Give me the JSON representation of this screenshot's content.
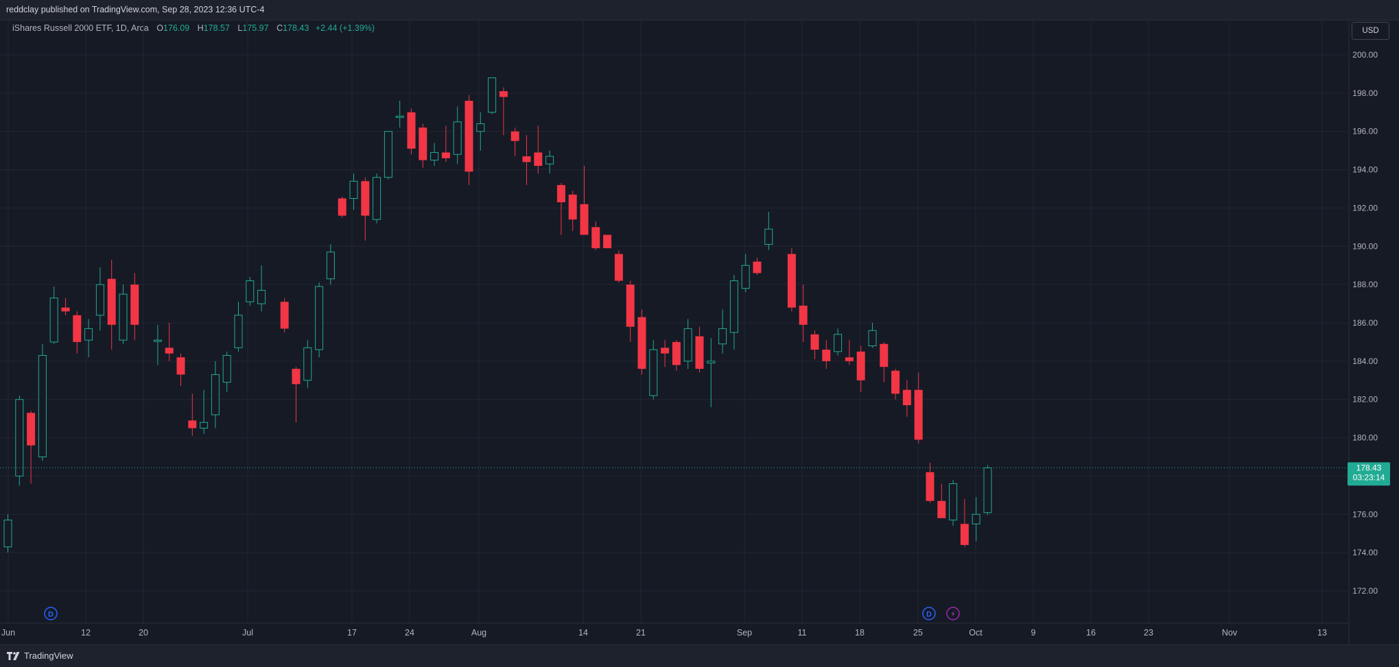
{
  "header": {
    "published": "reddclay published on TradingView.com, Sep 28, 2023 12:36 UTC-4"
  },
  "legend": {
    "symbol": "iShares Russell 2000 ETF, 1D, Arca",
    "o_label": "O",
    "o": "176.09",
    "h_label": "H",
    "h": "178.57",
    "l_label": "L",
    "l": "175.97",
    "c_label": "C",
    "c": "178.43",
    "change": "+2.44 (+1.39%)"
  },
  "currency_button": "USD",
  "last_price": {
    "value": "178.43",
    "countdown": "03:23:14"
  },
  "markers": {
    "dividend": "D",
    "earnings": "⚡"
  },
  "footer": {
    "brand": "TradingView"
  },
  "colors": {
    "up": "#22ab94",
    "down": "#f23645",
    "background": "#161a25",
    "grid": "#232632"
  },
  "chart_data": {
    "type": "candlestick",
    "x_tick_labels": [
      "Jun",
      "12",
      "20",
      "Jul",
      "17",
      "24",
      "Aug",
      "14",
      "21",
      "Sep",
      "11",
      "18",
      "25",
      "Oct",
      "9",
      "16",
      "23",
      "Nov",
      "13"
    ],
    "y_ticks": [
      172,
      174,
      176,
      178,
      180,
      182,
      184,
      186,
      188,
      190,
      192,
      194,
      196,
      198,
      200
    ],
    "y_tick_labels": [
      "172.00",
      "174.00",
      "176.00",
      "178.00",
      "180.00",
      "182.00",
      "184.00",
      "186.00",
      "188.00",
      "190.00",
      "192.00",
      "194.00",
      "196.00",
      "198.00",
      "200.00"
    ],
    "ylim": [
      171.0,
      202.0
    ],
    "grid": true,
    "candles": [
      {
        "date": "2023-06-01",
        "o": 174.3,
        "h": 176.0,
        "l": 174.0,
        "c": 175.7
      },
      {
        "date": "2023-06-02",
        "o": 178.0,
        "h": 182.2,
        "l": 177.5,
        "c": 182.0
      },
      {
        "date": "2023-06-05",
        "o": 181.3,
        "h": 181.4,
        "l": 177.6,
        "c": 179.6
      },
      {
        "date": "2023-06-06",
        "o": 179.0,
        "h": 184.9,
        "l": 178.8,
        "c": 184.3
      },
      {
        "date": "2023-06-07",
        "o": 185.0,
        "h": 187.9,
        "l": 184.9,
        "c": 187.3
      },
      {
        "date": "2023-06-08",
        "o": 186.8,
        "h": 187.3,
        "l": 186.4,
        "c": 186.6
      },
      {
        "date": "2023-06-09",
        "o": 186.4,
        "h": 186.6,
        "l": 184.4,
        "c": 185.0
      },
      {
        "date": "2023-06-12",
        "o": 185.1,
        "h": 186.2,
        "l": 184.2,
        "c": 185.7
      },
      {
        "date": "2023-06-13",
        "o": 186.4,
        "h": 188.9,
        "l": 185.6,
        "c": 188.0
      },
      {
        "date": "2023-06-14",
        "o": 188.3,
        "h": 189.3,
        "l": 184.6,
        "c": 185.9
      },
      {
        "date": "2023-06-15",
        "o": 185.1,
        "h": 188.0,
        "l": 184.9,
        "c": 187.5
      },
      {
        "date": "2023-06-16",
        "o": 188.0,
        "h": 188.6,
        "l": 185.1,
        "c": 185.9
      },
      {
        "date": "2023-06-20",
        "o": 185.1,
        "h": 185.9,
        "l": 183.8,
        "c": 185.1
      },
      {
        "date": "2023-06-21",
        "o": 184.7,
        "h": 186.0,
        "l": 184.0,
        "c": 184.4
      },
      {
        "date": "2023-06-22",
        "o": 184.2,
        "h": 184.4,
        "l": 182.7,
        "c": 183.3
      },
      {
        "date": "2023-06-23",
        "o": 180.9,
        "h": 182.3,
        "l": 180.1,
        "c": 180.5
      },
      {
        "date": "2023-06-26",
        "o": 180.5,
        "h": 182.5,
        "l": 180.2,
        "c": 180.8
      },
      {
        "date": "2023-06-27",
        "o": 181.2,
        "h": 184.0,
        "l": 180.5,
        "c": 183.3
      },
      {
        "date": "2023-06-28",
        "o": 182.9,
        "h": 184.5,
        "l": 182.4,
        "c": 184.3
      },
      {
        "date": "2023-06-29",
        "o": 184.7,
        "h": 187.1,
        "l": 184.5,
        "c": 186.4
      },
      {
        "date": "2023-06-30",
        "o": 187.1,
        "h": 188.4,
        "l": 186.9,
        "c": 188.2
      },
      {
        "date": "2023-07-03",
        "o": 187.0,
        "h": 189.0,
        "l": 186.6,
        "c": 187.7
      },
      {
        "date": "2023-07-05",
        "o": 187.1,
        "h": 187.3,
        "l": 185.5,
        "c": 185.7
      },
      {
        "date": "2023-07-06",
        "o": 183.6,
        "h": 183.7,
        "l": 180.8,
        "c": 182.8
      },
      {
        "date": "2023-07-07",
        "o": 183.0,
        "h": 185.1,
        "l": 182.6,
        "c": 184.7
      },
      {
        "date": "2023-07-10",
        "o": 184.6,
        "h": 188.1,
        "l": 184.2,
        "c": 187.9
      },
      {
        "date": "2023-07-11",
        "o": 188.3,
        "h": 190.1,
        "l": 188.0,
        "c": 189.7
      },
      {
        "date": "2023-07-12",
        "o": 192.5,
        "h": 192.6,
        "l": 191.5,
        "c": 191.6
      },
      {
        "date": "2023-07-13",
        "o": 192.5,
        "h": 193.8,
        "l": 191.9,
        "c": 193.4
      },
      {
        "date": "2023-07-14",
        "o": 193.4,
        "h": 193.6,
        "l": 190.3,
        "c": 191.6
      },
      {
        "date": "2023-07-17",
        "o": 191.4,
        "h": 193.8,
        "l": 191.2,
        "c": 193.6
      },
      {
        "date": "2023-07-18",
        "o": 193.6,
        "h": 196.0,
        "l": 193.5,
        "c": 196.0
      },
      {
        "date": "2023-07-19",
        "o": 196.8,
        "h": 197.6,
        "l": 196.2,
        "c": 196.8
      },
      {
        "date": "2023-07-20",
        "o": 197.0,
        "h": 197.2,
        "l": 194.8,
        "c": 195.1
      },
      {
        "date": "2023-07-21",
        "o": 196.2,
        "h": 196.4,
        "l": 194.1,
        "c": 194.5
      },
      {
        "date": "2023-07-24",
        "o": 194.5,
        "h": 195.4,
        "l": 194.2,
        "c": 194.9
      },
      {
        "date": "2023-07-25",
        "o": 194.9,
        "h": 196.3,
        "l": 194.4,
        "c": 194.6
      },
      {
        "date": "2023-07-26",
        "o": 194.8,
        "h": 197.3,
        "l": 194.3,
        "c": 196.5
      },
      {
        "date": "2023-07-27",
        "o": 197.6,
        "h": 197.9,
        "l": 193.2,
        "c": 193.9
      },
      {
        "date": "2023-07-28",
        "o": 196.0,
        "h": 197.0,
        "l": 195.0,
        "c": 196.4
      },
      {
        "date": "2023-07-31",
        "o": 197.0,
        "h": 198.8,
        "l": 196.9,
        "c": 198.8
      },
      {
        "date": "2023-08-01",
        "o": 198.1,
        "h": 198.3,
        "l": 195.8,
        "c": 197.8
      },
      {
        "date": "2023-08-02",
        "o": 196.0,
        "h": 196.2,
        "l": 194.7,
        "c": 195.5
      },
      {
        "date": "2023-08-03",
        "o": 194.7,
        "h": 195.8,
        "l": 193.2,
        "c": 194.4
      },
      {
        "date": "2023-08-04",
        "o": 194.9,
        "h": 196.3,
        "l": 193.8,
        "c": 194.2
      },
      {
        "date": "2023-08-07",
        "o": 194.3,
        "h": 195.0,
        "l": 193.8,
        "c": 194.7
      },
      {
        "date": "2023-08-08",
        "o": 193.2,
        "h": 193.3,
        "l": 190.6,
        "c": 192.3
      },
      {
        "date": "2023-08-09",
        "o": 192.7,
        "h": 192.9,
        "l": 190.8,
        "c": 191.4
      },
      {
        "date": "2023-08-10",
        "o": 192.2,
        "h": 194.2,
        "l": 190.8,
        "c": 190.6
      },
      {
        "date": "2023-08-11",
        "o": 191.0,
        "h": 191.3,
        "l": 189.8,
        "c": 189.9
      },
      {
        "date": "2023-08-14",
        "o": 190.6,
        "h": 190.6,
        "l": 189.9,
        "c": 189.9
      },
      {
        "date": "2023-08-15",
        "o": 189.6,
        "h": 189.8,
        "l": 188.1,
        "c": 188.2
      },
      {
        "date": "2023-08-16",
        "o": 188.0,
        "h": 188.2,
        "l": 185.0,
        "c": 185.8
      },
      {
        "date": "2023-08-17",
        "o": 186.3,
        "h": 186.7,
        "l": 183.3,
        "c": 183.6
      },
      {
        "date": "2023-08-18",
        "o": 182.2,
        "h": 185.1,
        "l": 182.0,
        "c": 184.6
      },
      {
        "date": "2023-08-21",
        "o": 184.7,
        "h": 185.1,
        "l": 183.7,
        "c": 184.4
      },
      {
        "date": "2023-08-22",
        "o": 185.0,
        "h": 185.1,
        "l": 183.5,
        "c": 183.8
      },
      {
        "date": "2023-08-23",
        "o": 184.0,
        "h": 186.2,
        "l": 183.6,
        "c": 185.7
      },
      {
        "date": "2023-08-24",
        "o": 185.3,
        "h": 185.8,
        "l": 183.4,
        "c": 183.6
      },
      {
        "date": "2023-08-25",
        "o": 183.9,
        "h": 185.2,
        "l": 181.6,
        "c": 184.0
      },
      {
        "date": "2023-08-28",
        "o": 184.9,
        "h": 186.7,
        "l": 184.4,
        "c": 185.7
      },
      {
        "date": "2023-08-29",
        "o": 185.5,
        "h": 188.5,
        "l": 184.6,
        "c": 188.2
      },
      {
        "date": "2023-08-30",
        "o": 187.8,
        "h": 189.6,
        "l": 187.6,
        "c": 189.0
      },
      {
        "date": "2023-08-31",
        "o": 189.2,
        "h": 189.4,
        "l": 188.5,
        "c": 188.6
      },
      {
        "date": "2023-09-01",
        "o": 190.1,
        "h": 191.8,
        "l": 189.8,
        "c": 190.9
      },
      {
        "date": "2023-09-05",
        "o": 189.6,
        "h": 189.9,
        "l": 186.6,
        "c": 186.8
      },
      {
        "date": "2023-09-06",
        "o": 186.9,
        "h": 188.0,
        "l": 185.0,
        "c": 185.9
      },
      {
        "date": "2023-09-07",
        "o": 185.4,
        "h": 185.6,
        "l": 184.1,
        "c": 184.6
      },
      {
        "date": "2023-09-08",
        "o": 184.6,
        "h": 185.1,
        "l": 183.6,
        "c": 184.0
      },
      {
        "date": "2023-09-11",
        "o": 184.5,
        "h": 185.7,
        "l": 184.3,
        "c": 185.4
      },
      {
        "date": "2023-09-12",
        "o": 184.2,
        "h": 185.1,
        "l": 183.8,
        "c": 184.0
      },
      {
        "date": "2023-09-13",
        "o": 184.5,
        "h": 184.8,
        "l": 182.4,
        "c": 183.0
      },
      {
        "date": "2023-09-14",
        "o": 184.8,
        "h": 186.0,
        "l": 184.7,
        "c": 185.6
      },
      {
        "date": "2023-09-15",
        "o": 184.9,
        "h": 185.0,
        "l": 182.9,
        "c": 183.7
      },
      {
        "date": "2023-09-18",
        "o": 183.5,
        "h": 183.6,
        "l": 182.0,
        "c": 182.3
      },
      {
        "date": "2023-09-19",
        "o": 182.5,
        "h": 183.0,
        "l": 181.1,
        "c": 181.7
      },
      {
        "date": "2023-09-20",
        "o": 182.5,
        "h": 183.4,
        "l": 179.7,
        "c": 179.9
      },
      {
        "date": "2023-09-21",
        "o": 178.2,
        "h": 178.7,
        "l": 176.6,
        "c": 176.7
      },
      {
        "date": "2023-09-22",
        "o": 176.7,
        "h": 177.6,
        "l": 175.9,
        "c": 175.8
      },
      {
        "date": "2023-09-25",
        "o": 175.7,
        "h": 177.8,
        "l": 175.4,
        "c": 177.6
      },
      {
        "date": "2023-09-26",
        "o": 175.5,
        "h": 176.8,
        "l": 174.3,
        "c": 174.4
      },
      {
        "date": "2023-09-27",
        "o": 175.5,
        "h": 176.9,
        "l": 174.6,
        "c": 176.0
      },
      {
        "date": "2023-09-28",
        "o": 176.09,
        "h": 178.57,
        "l": 175.97,
        "c": 178.43
      }
    ]
  }
}
